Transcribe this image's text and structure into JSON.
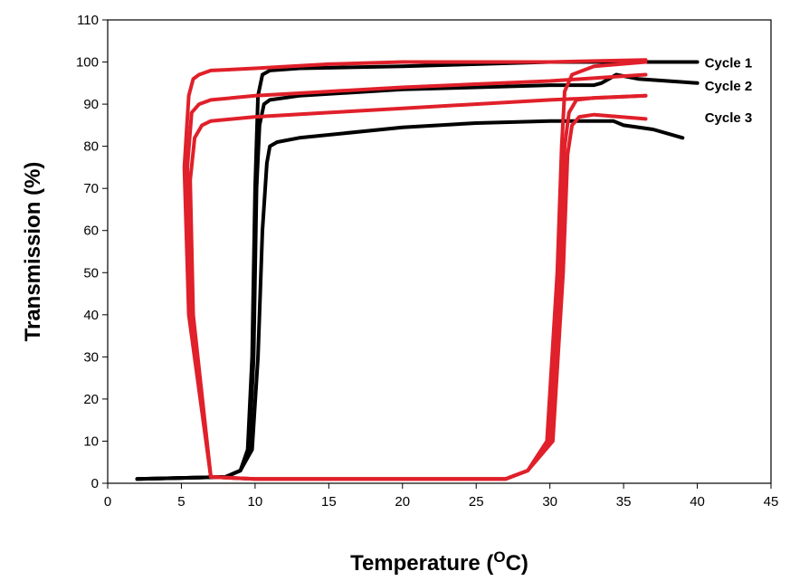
{
  "chart_data": {
    "type": "line",
    "title": "",
    "xlabel": "Temperature (",
    "xlabel_sup": "O",
    "xlabel_suffix": "C)",
    "ylabel": "Transmission (%)",
    "xlim": [
      0,
      45
    ],
    "ylim": [
      0,
      110
    ],
    "xticks": [
      0,
      5,
      10,
      15,
      20,
      25,
      30,
      35,
      40,
      45
    ],
    "yticks": [
      0,
      10,
      20,
      30,
      40,
      50,
      60,
      70,
      80,
      90,
      100,
      110
    ],
    "grid": false,
    "legend": "none",
    "labels": [
      {
        "text": "Cycle 1",
        "x": 40.5,
        "y": 100
      },
      {
        "text": "Cycle 2",
        "x": 40.5,
        "y": 94.5
      },
      {
        "text": "Cycle 3",
        "x": 40.5,
        "y": 87
      }
    ],
    "colors": {
      "heating": "#000000",
      "cooling": "#e0202a"
    },
    "series": [
      {
        "color": "heating",
        "x": [
          2,
          8,
          9,
          9.5,
          9.8,
          10,
          10.2,
          10.5,
          11,
          13,
          20,
          25,
          30,
          32,
          33,
          33.5,
          34,
          34.5,
          36,
          38,
          40
        ],
        "y": [
          1,
          1.5,
          3,
          8,
          30,
          70,
          92,
          97,
          98,
          98.5,
          99,
          99.5,
          100,
          100,
          100,
          100,
          100,
          100,
          100,
          100,
          100
        ]
      },
      {
        "color": "heating",
        "x": [
          2,
          8,
          9,
          9.6,
          9.9,
          10.1,
          10.3,
          10.6,
          11,
          13,
          20,
          25,
          30,
          32,
          33,
          33.5,
          34,
          34.5,
          36,
          38,
          40
        ],
        "y": [
          1,
          1.5,
          3,
          8,
          30,
          70,
          85,
          90,
          91,
          92,
          93.5,
          94,
          94.5,
          94.5,
          94.5,
          95,
          96,
          97,
          96,
          95.5,
          95
        ]
      },
      {
        "color": "heating",
        "x": [
          2,
          8,
          9,
          9.8,
          10.2,
          10.5,
          10.8,
          11,
          11.5,
          13,
          20,
          25,
          30,
          32,
          33,
          33.5,
          34,
          34.3,
          35,
          37,
          39
        ],
        "y": [
          1,
          1.5,
          3,
          8,
          30,
          60,
          76,
          80,
          81,
          82,
          84.5,
          85.5,
          86,
          86,
          86,
          86,
          86,
          86,
          85,
          84,
          82
        ]
      },
      {
        "color": "cooling",
        "x": [
          36.5,
          33,
          31.5,
          31,
          30.8,
          30.5,
          29.8,
          28.5,
          27,
          25,
          20,
          15,
          10,
          7,
          5.5,
          5.2,
          5.5,
          5.8,
          6.2,
          7,
          10,
          15,
          20,
          30,
          36.5
        ],
        "y": [
          100,
          99,
          97,
          93,
          80,
          50,
          10,
          3,
          1,
          1,
          1,
          1,
          1,
          1.5,
          40,
          75,
          92,
          96,
          97,
          98,
          98.5,
          99.5,
          100,
          100,
          100.5
        ]
      },
      {
        "color": "cooling",
        "x": [
          36.5,
          33,
          31.8,
          31.3,
          31,
          30.7,
          30,
          28.5,
          27,
          25,
          20,
          15,
          10,
          7,
          5.6,
          5.4,
          5.7,
          6.2,
          7,
          10,
          15,
          20,
          30,
          36.5
        ],
        "y": [
          92,
          91.5,
          91,
          88,
          80,
          50,
          10,
          3,
          1,
          1,
          1,
          1,
          1,
          1.5,
          40,
          75,
          88,
          90,
          91,
          92,
          93,
          94,
          95.5,
          97
        ]
      },
      {
        "color": "cooling",
        "x": [
          36.5,
          33,
          32,
          31.5,
          31.2,
          30.9,
          30.2,
          28.5,
          27,
          25,
          20,
          15,
          10,
          7,
          5.8,
          5.6,
          5.9,
          6.4,
          7,
          10,
          15,
          20,
          30,
          36.5
        ],
        "y": [
          86.5,
          87.5,
          87,
          85,
          78,
          50,
          10,
          3,
          1,
          1,
          1,
          1,
          1,
          1.5,
          40,
          72,
          82,
          85,
          86,
          87,
          88,
          89,
          91,
          92
        ]
      }
    ]
  }
}
